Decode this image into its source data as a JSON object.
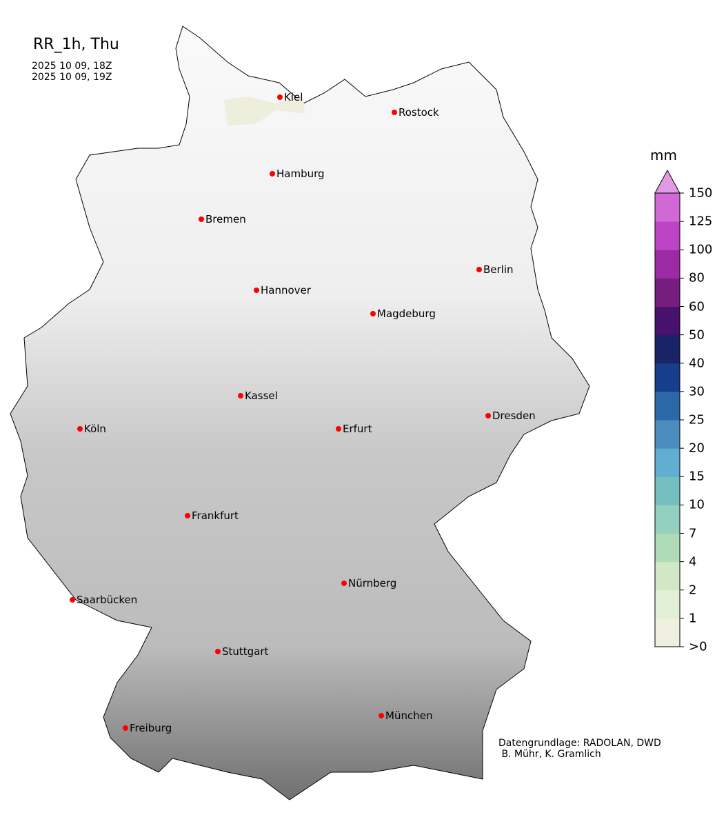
{
  "title": "RR_1h, Thu",
  "time_from": "2025 10 09, 18Z",
  "time_to": "2025 10 09, 19Z",
  "credit": "Datengrundlage: RADOLAN, DWD\n B. Mühr, K. Gramlich",
  "colorbar": {
    "unit": "mm",
    "ticks": [
      ">0",
      "1",
      "2",
      "4",
      "7",
      "10",
      "15",
      "20",
      "25",
      "30",
      "40",
      "50",
      "60",
      "80",
      "100",
      "125",
      "150"
    ],
    "colors": [
      "#f0f0e0",
      "#e3f0d8",
      "#d0e8c6",
      "#b0dbb8",
      "#94d0c0",
      "#74c0c0",
      "#62aed0",
      "#4a8cbc",
      "#2c68a8",
      "#163e8c",
      "#182466",
      "#46126e",
      "#761e7e",
      "#9c2aa4",
      "#be44c6",
      "#d068d6"
    ],
    "extend_color": "#e09ae4"
  },
  "precip_area_color": "#eeeedd",
  "cities": [
    {
      "name": "Kiel"
    },
    {
      "name": "Rostock"
    },
    {
      "name": "Hamburg"
    },
    {
      "name": "Bremen"
    },
    {
      "name": "Berlin"
    },
    {
      "name": "Hannover"
    },
    {
      "name": "Magdeburg"
    },
    {
      "name": "Kassel"
    },
    {
      "name": "Köln"
    },
    {
      "name": "Erfurt"
    },
    {
      "name": "Dresden"
    },
    {
      "name": "Frankfurt"
    },
    {
      "name": "Nürnberg"
    },
    {
      "name": "Saarbücken"
    },
    {
      "name": "Stuttgart"
    },
    {
      "name": "München"
    },
    {
      "name": "Freiburg"
    }
  ]
}
